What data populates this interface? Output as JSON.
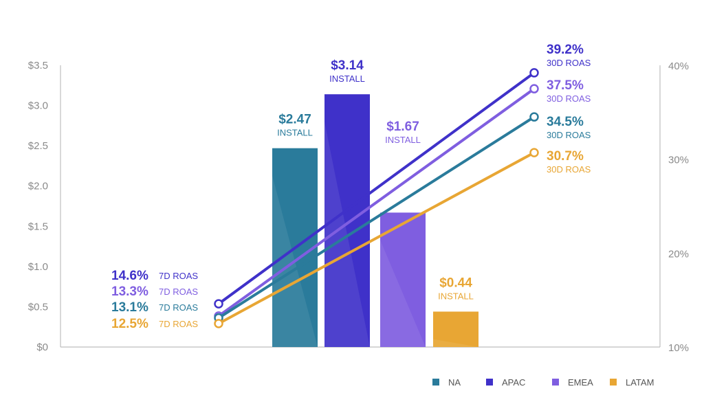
{
  "colors": {
    "NA": "#2a7b9b",
    "APAC": "#3f31c9",
    "EMEA": "#7f5ee0",
    "LATAM": "#e8a634",
    "axis": "#bdbdbd",
    "tick": "#8a8a8a"
  },
  "chart_data": {
    "type": "bar",
    "title": "",
    "left_axis": {
      "ylim": [
        0,
        3.5
      ],
      "ticks": [
        "$0",
        "$0.5",
        "$1.0",
        "$1.5",
        "$2.0",
        "$2.5",
        "$3.0",
        "$3.5"
      ]
    },
    "right_axis": {
      "ylim": [
        10,
        40
      ],
      "ticks": [
        "10%",
        "20%",
        "30%",
        "40%"
      ]
    },
    "categories": [
      "NA",
      "APAC",
      "EMEA",
      "LATAM"
    ],
    "bars": [
      {
        "name": "NA",
        "value": 2.47,
        "label": "$2.47",
        "sublabel": "INSTALL"
      },
      {
        "name": "APAC",
        "value": 3.14,
        "label": "$3.14",
        "sublabel": "INSTALL"
      },
      {
        "name": "EMEA",
        "value": 1.67,
        "label": "$1.67",
        "sublabel": "INSTALL"
      },
      {
        "name": "LATAM",
        "value": 0.44,
        "label": "$0.44",
        "sublabel": "INSTALL"
      }
    ],
    "roas_lines": [
      {
        "name": "APAC",
        "start": 14.6,
        "end": 39.2,
        "start_label": "14.6%",
        "start_sub": "7D ROAS",
        "end_label": "39.2%",
        "end_sub": "30D ROAS"
      },
      {
        "name": "EMEA",
        "start": 13.3,
        "end": 37.5,
        "start_label": "13.3%",
        "start_sub": "7D ROAS",
        "end_label": "37.5%",
        "end_sub": "30D ROAS"
      },
      {
        "name": "NA",
        "start": 13.1,
        "end": 34.5,
        "start_label": "13.1%",
        "start_sub": "7D ROAS",
        "end_label": "34.5%",
        "end_sub": "30D ROAS"
      },
      {
        "name": "LATAM",
        "start": 12.5,
        "end": 30.7,
        "start_label": "12.5%",
        "start_sub": "7D ROAS",
        "end_label": "30.7%",
        "end_sub": "30D ROAS"
      }
    ],
    "legend": [
      "NA",
      "APAC",
      "EMEA",
      "LATAM"
    ],
    "legend_position": "bottom-right",
    "grid": false
  }
}
